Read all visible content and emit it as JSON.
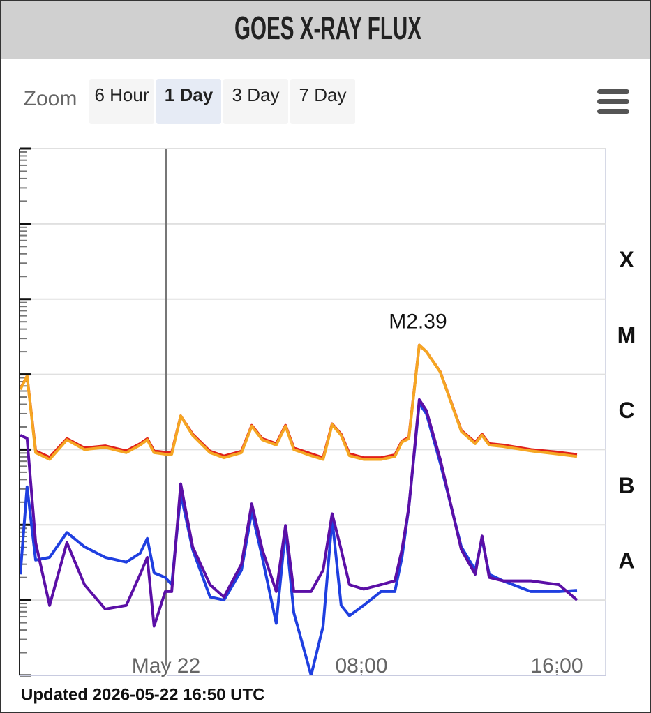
{
  "header": {
    "title": "GOES X-RAY FLUX"
  },
  "zoom": {
    "label": "Zoom",
    "options": [
      "6 Hour",
      "1 Day",
      "3 Day",
      "7 Day"
    ],
    "selected": 1
  },
  "chart_data": {
    "type": "line",
    "ylog": true,
    "grid": true,
    "minor_ticks": true,
    "xlim": [
      -6,
      18
    ],
    "xticks": [
      {
        "value": 0,
        "label": "May 22"
      },
      {
        "value": 8,
        "label": "08:00"
      },
      {
        "value": 16,
        "label": "16:00"
      }
    ],
    "ylim": [
      1e-09,
      0.01
    ],
    "yticks": [
      1e-09,
      1e-08,
      1e-07,
      1e-06,
      1e-05,
      0.0001,
      0.001,
      0.01
    ],
    "class_bands": [
      {
        "label": "A",
        "from": 1e-08,
        "to": 1e-07
      },
      {
        "label": "B",
        "from": 1e-07,
        "to": 1e-06
      },
      {
        "label": "C",
        "from": 1e-06,
        "to": 1e-05
      },
      {
        "label": "M",
        "from": 1e-05,
        "to": 0.0001
      },
      {
        "label": "X",
        "from": 0.0001,
        "to": 0.001
      }
    ],
    "annotations": [
      {
        "text": "M2.39"
      }
    ],
    "x": [
      -5.97,
      -5.69,
      -5.34,
      -4.77,
      -4.06,
      -3.34,
      -2.49,
      -1.63,
      -1.06,
      -0.77,
      -0.49,
      -0.03,
      0.23,
      0.6,
      1.09,
      1.8,
      2.37,
      3.09,
      3.51,
      3.94,
      4.51,
      4.89,
      5.23,
      5.94,
      6.43,
      6.8,
      7.17,
      7.51,
      8.09,
      8.8,
      9.37,
      9.66,
      9.94,
      10.37,
      10.66,
      11.23,
      12.09,
      12.66,
      12.94,
      13.23,
      13.8,
      14.94,
      16.09,
      16.83
    ],
    "series": [
      {
        "color": "#e0201b",
        "values": [
          6.4e-06,
          9.5e-06,
          9.6e-07,
          7.9e-07,
          1.4e-06,
          1.05e-06,
          1.12e-06,
          9.6e-07,
          1.2e-06,
          1.4e-06,
          9.6e-07,
          9.2e-07,
          9.1e-07,
          2.8e-06,
          1.6e-06,
          9.5e-07,
          8.2e-07,
          9.5e-07,
          2.1e-06,
          1.4e-06,
          1.2e-06,
          2.1e-06,
          1.05e-06,
          8.8e-07,
          7.8e-07,
          2.2e-06,
          1.6e-06,
          8.8e-07,
          7.8e-07,
          7.8e-07,
          8.5e-07,
          1.3e-06,
          1.45e-06,
          2.45e-05,
          2e-05,
          1.08e-05,
          1.8e-06,
          1.25e-06,
          1.6e-06,
          1.2e-06,
          1.15e-06,
          1e-06,
          9.2e-07,
          8.6e-07
        ]
      },
      {
        "color": "#f5a623",
        "values": [
          6.3e-06,
          9.5e-06,
          9.1e-07,
          7.4e-07,
          1.35e-06,
          1e-06,
          1.07e-06,
          9.1e-07,
          1.15e-06,
          1.35e-06,
          9.1e-07,
          8.7e-07,
          8.7e-07,
          2.8e-06,
          1.55e-06,
          9.1e-07,
          7.8e-07,
          9.1e-07,
          2.05e-06,
          1.35e-06,
          1.15e-06,
          2.05e-06,
          1e-06,
          8.3e-07,
          7.4e-07,
          2.15e-06,
          1.55e-06,
          8.3e-07,
          7.4e-07,
          7.4e-07,
          8.1e-07,
          1.26e-06,
          1.4e-06,
          2.45e-05,
          2e-05,
          1.07e-05,
          1.75e-06,
          1.2e-06,
          1.55e-06,
          1.15e-06,
          1.1e-06,
          9.6e-07,
          8.7e-07,
          8.1e-07
        ]
      },
      {
        "color": "#1f3fe0",
        "values": [
          2.2e-08,
          3.2e-07,
          3.4e-08,
          3.7e-08,
          7.9e-08,
          5.1e-08,
          3.7e-08,
          3.2e-08,
          4.2e-08,
          6.6e-08,
          2.3e-08,
          2e-08,
          1.6e-08,
          2.6e-07,
          4.7e-08,
          1.1e-08,
          1e-08,
          2.5e-08,
          1.5e-07,
          3.7e-08,
          4.9e-09,
          8.7e-08,
          6.8e-09,
          1e-09,
          4.5e-09,
          1.2e-07,
          8.5e-09,
          6.2e-09,
          8.5e-09,
          1.3e-08,
          1.3e-08,
          3.7e-08,
          1.7e-07,
          4.1e-06,
          3e-06,
          6.6e-07,
          5.1e-08,
          2.5e-08,
          6.5e-08,
          2.2e-08,
          1.8e-08,
          1.3e-08,
          1.3e-08,
          1.35e-08
        ]
      },
      {
        "color": "#5b0fa6",
        "values": [
          1.55e-06,
          1.41e-06,
          5.8e-08,
          8.5e-09,
          5.8e-08,
          1.6e-08,
          7.6e-09,
          8.5e-09,
          2.2e-08,
          3.7e-08,
          4.5e-09,
          1.3e-08,
          1.3e-08,
          3.5e-07,
          5.1e-08,
          1.6e-08,
          1.1e-08,
          3e-08,
          1.9e-07,
          4.7e-08,
          1.3e-08,
          9.8e-08,
          1.3e-08,
          1.3e-08,
          2.5e-08,
          1.4e-07,
          4.7e-08,
          1.6e-08,
          1.4e-08,
          1.6e-08,
          1.8e-08,
          4.7e-08,
          1.7e-07,
          4.6e-06,
          3.3e-06,
          7.4e-07,
          4.7e-08,
          2.2e-08,
          7.1e-08,
          2e-08,
          1.8e-08,
          1.8e-08,
          1.6e-08,
          1e-08
        ]
      }
    ]
  },
  "footer": {
    "updated": "Updated 2026-05-22 16:50 UTC"
  }
}
